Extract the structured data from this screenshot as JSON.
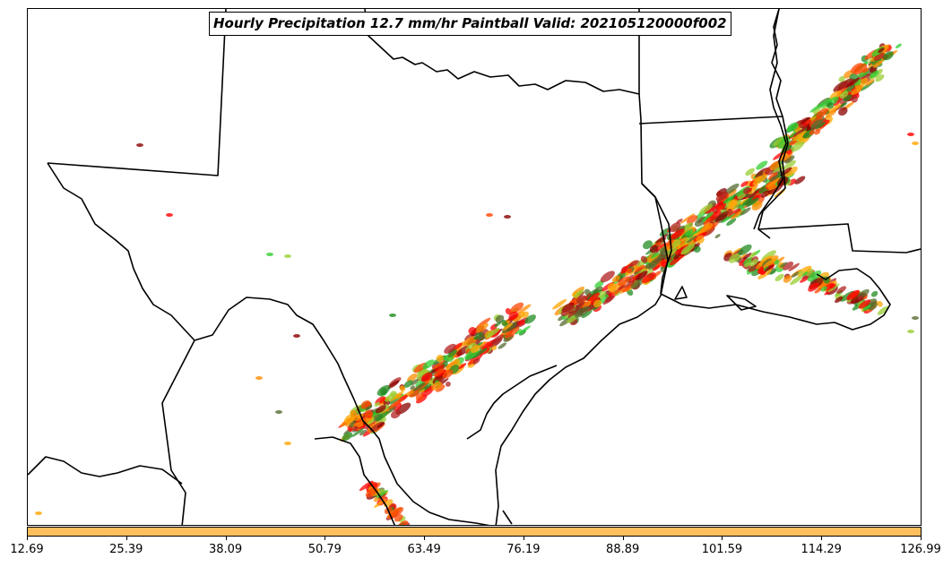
{
  "title": "Hourly Precipitation 12.7 mm/hr Paintball Valid: 202105120000f002",
  "colorbar": {
    "color": "#ffbf5e",
    "ticks": [
      "12.69",
      "25.39",
      "38.09",
      "50.79",
      "63.49",
      "76.19",
      "88.89",
      "101.59",
      "114.29",
      "126.99"
    ]
  },
  "paintball_colors": [
    "#ff0000",
    "#ff8c00",
    "#ffa500",
    "#228b22",
    "#32cd32",
    "#b22222",
    "#9acd32",
    "#ff4500",
    "#8b0000",
    "#556b2f"
  ],
  "map": {
    "boundary_color": "#000000"
  }
}
